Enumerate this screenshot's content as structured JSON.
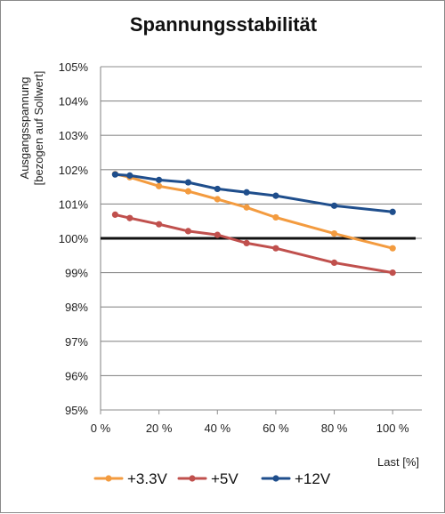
{
  "chart_data": {
    "type": "line",
    "title": "Spannungsstabilität",
    "xlabel": "Last [%]",
    "ylabel_lines": [
      "Ausgangsspannung",
      "[bezogen auf Sollwert]"
    ],
    "xlim": [
      0,
      110
    ],
    "ylim": [
      95,
      105
    ],
    "x_ticks": [
      0,
      20,
      40,
      60,
      80,
      100
    ],
    "x_tick_labels": [
      "0 %",
      "20 %",
      "40 %",
      "60 %",
      "80 %",
      "100 %"
    ],
    "y_ticks": [
      95,
      96,
      97,
      98,
      99,
      100,
      101,
      102,
      103,
      104,
      105
    ],
    "y_tick_labels": [
      "95%",
      "96%",
      "97%",
      "98%",
      "99%",
      "100%",
      "101%",
      "102%",
      "103%",
      "104%",
      "105%"
    ],
    "grid": "horizontal",
    "legend_position": "bottom",
    "reference_line": {
      "y": 100,
      "color": "#111111"
    },
    "x": [
      5,
      10,
      20,
      30,
      40,
      50,
      60,
      80,
      100
    ],
    "series": [
      {
        "name": "+3.3V",
        "color": "#f39b3f",
        "values": [
          101.87,
          101.78,
          101.52,
          101.37,
          101.14,
          100.9,
          100.61,
          100.14,
          99.71
        ]
      },
      {
        "name": "+5V",
        "color": "#c0504d",
        "values": [
          100.69,
          100.59,
          100.41,
          100.21,
          100.1,
          99.86,
          99.71,
          99.29,
          99.0
        ]
      },
      {
        "name": "+12V",
        "color": "#1f4e8c",
        "values": [
          101.86,
          101.83,
          101.7,
          101.63,
          101.44,
          101.34,
          101.24,
          100.95,
          100.77
        ]
      }
    ]
  }
}
